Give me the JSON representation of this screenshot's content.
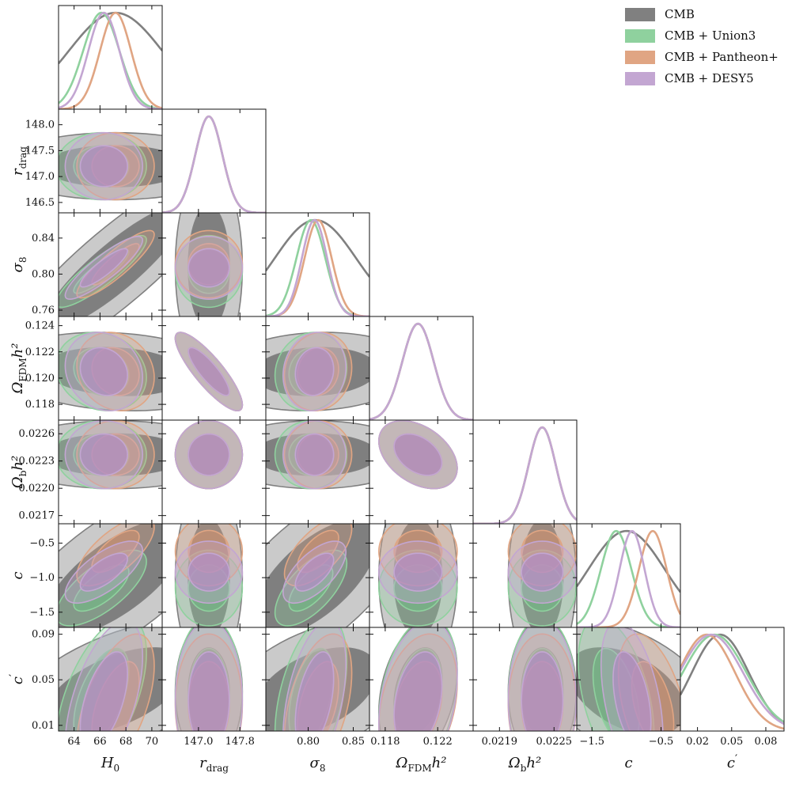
{
  "chart_data": {
    "type": "corner",
    "parameters": [
      {
        "key": "H0",
        "label": "H",
        "sub": "0",
        "sup": "",
        "range": [
          62.8,
          70.8
        ],
        "ticks": [
          64,
          66,
          68,
          70
        ],
        "tick_labels": [
          "64",
          "66",
          "68",
          "70"
        ]
      },
      {
        "key": "rdrag",
        "label": "r",
        "sub": "drag",
        "sup": "",
        "range": [
          146.3,
          148.3
        ],
        "ticks": [
          146.5,
          147.0,
          147.5,
          148.0
        ],
        "tick_labels": [
          "146.5",
          "147.0",
          "147.5",
          "148.0"
        ],
        "bottom_ticks": [
          147.0,
          147.8
        ],
        "bottom_tick_labels": [
          "147.0",
          "147.8"
        ]
      },
      {
        "key": "sigma8",
        "label": "σ",
        "sub": "8",
        "sup": "",
        "range": [
          0.753,
          0.868
        ],
        "ticks": [
          0.76,
          0.8,
          0.84
        ],
        "tick_labels": [
          "0.76",
          "0.80",
          "0.84"
        ],
        "bottom_ticks": [
          0.8,
          0.85
        ],
        "bottom_tick_labels": [
          "0.80",
          "0.85"
        ]
      },
      {
        "key": "omfdm",
        "label": "Ω",
        "sub": "FDM",
        "sup": "h²",
        "range": [
          0.1168,
          0.1247
        ],
        "ticks": [
          0.118,
          0.12,
          0.122,
          0.124
        ],
        "tick_labels": [
          "0.118",
          "0.120",
          "0.122",
          "0.124"
        ],
        "bottom_ticks": [
          0.118,
          0.122
        ],
        "bottom_tick_labels": [
          "0.118",
          "0.122"
        ]
      },
      {
        "key": "ombh2",
        "label": "Ω",
        "sub": "b",
        "sup": "h²",
        "range": [
          0.02161,
          0.02275
        ],
        "ticks": [
          0.0217,
          0.022,
          0.0223,
          0.0226
        ],
        "tick_labels": [
          "0.0217",
          "0.0220",
          "0.0223",
          "0.0226"
        ],
        "bottom_ticks": [
          0.0219,
          0.0225
        ],
        "bottom_tick_labels": [
          "0.0219",
          "0.0225"
        ]
      },
      {
        "key": "c",
        "label": "c",
        "sub": "",
        "sup": "",
        "range": [
          -1.72,
          -0.22
        ],
        "ticks": [
          -1.5,
          -1.0,
          -0.5
        ],
        "tick_labels": [
          "−1.5",
          "−1.0",
          "−0.5"
        ],
        "bottom_ticks": [
          -1.5,
          -0.5
        ],
        "bottom_tick_labels": [
          "−1.5",
          "−0.5"
        ]
      },
      {
        "key": "cprime",
        "label": "c",
        "sub": "",
        "sup": "′",
        "range": [
          0.005,
          0.096
        ],
        "ticks": [
          0.01,
          0.05,
          0.09
        ],
        "tick_labels": [
          "0.01",
          "0.05",
          "0.09"
        ],
        "bottom_ticks": [
          0.02,
          0.05,
          0.08
        ],
        "bottom_tick_labels": [
          "0.02",
          "0.05",
          "0.08"
        ]
      }
    ],
    "series": [
      {
        "name": "CMB",
        "color": "#808080",
        "inner": "#6b6b6b",
        "fill_opacity": 0.42,
        "inner_opacity": 0.8,
        "mean": {
          "H0": 67.2,
          "rdrag": 147.2,
          "sigma8": 0.808,
          "omfdm": 0.1205,
          "ombh2": 0.02237,
          "c": -1.0,
          "cprime": 0.04
        },
        "sigma": {
          "H0": 3.6,
          "rdrag": 0.26,
          "sigma8": 0.045,
          "omfdm": 0.0012,
          "ombh2": 0.00015,
          "c": 0.55,
          "cprime": 0.025
        }
      },
      {
        "name": "CMB + Union3",
        "color": "#8fd19e",
        "inner": "#6fbf83",
        "fill_opacity": 0.32,
        "inner_opacity": 0.55,
        "mean": {
          "H0": 66.1,
          "rdrag": 147.2,
          "sigma8": 0.803,
          "omfdm": 0.1205,
          "ombh2": 0.02237,
          "c": -1.15,
          "cprime": 0.035
        },
        "sigma": {
          "H0": 1.4,
          "rdrag": 0.26,
          "sigma8": 0.016,
          "omfdm": 0.0012,
          "ombh2": 0.00015,
          "c": 0.22,
          "cprime": 0.028
        }
      },
      {
        "name": "CMB + Pantheon+",
        "color": "#e0a583",
        "inner": "#d9916a",
        "fill_opacity": 0.3,
        "inner_opacity": 0.5,
        "mean": {
          "H0": 67.2,
          "rdrag": 147.2,
          "sigma8": 0.811,
          "omfdm": 0.1205,
          "ombh2": 0.02237,
          "c": -0.62,
          "cprime": 0.028
        },
        "sigma": {
          "H0": 1.2,
          "rdrag": 0.26,
          "sigma8": 0.015,
          "omfdm": 0.0012,
          "ombh2": 0.00015,
          "c": 0.2,
          "cprime": 0.025
        }
      },
      {
        "name": "CMB + DESY5",
        "color": "#c3a6d2",
        "inner": "#b08bc4",
        "fill_opacity": 0.35,
        "inner_opacity": 0.7,
        "mean": {
          "H0": 66.3,
          "rdrag": 147.2,
          "sigma8": 0.807,
          "omfdm": 0.1205,
          "ombh2": 0.02237,
          "c": -0.92,
          "cprime": 0.032
        },
        "sigma": {
          "H0": 1.2,
          "rdrag": 0.26,
          "sigma8": 0.014,
          "omfdm": 0.0012,
          "ombh2": 0.00015,
          "c": 0.18,
          "cprime": 0.028
        }
      }
    ],
    "correlations": {
      "rdrag|H0": 0.0,
      "sigma8|H0": 0.88,
      "omfdm|H0": -0.15,
      "omfdm|rdrag": -0.85,
      "omfdm|sigma8": 0.1,
      "ombh2|H0": 0.0,
      "ombh2|rdrag": 0.0,
      "ombh2|sigma8": 0.0,
      "ombh2|omfdm": -0.4,
      "c|H0": 0.7,
      "c|rdrag": 0.0,
      "c|sigma8": 0.65,
      "c|omfdm": 0.0,
      "c|ombh2": 0.0,
      "cprime|H0": 0.55,
      "cprime|rdrag": 0.0,
      "cprime|sigma8": 0.45,
      "cprime|omfdm": 0.3,
      "cprime|ombh2": 0.0,
      "cprime|c": -0.45
    },
    "legend": {
      "position": "top-right",
      "entries": [
        "CMB",
        "CMB + Union3",
        "CMB + Pantheon+",
        "CMB + DESY5"
      ]
    }
  }
}
